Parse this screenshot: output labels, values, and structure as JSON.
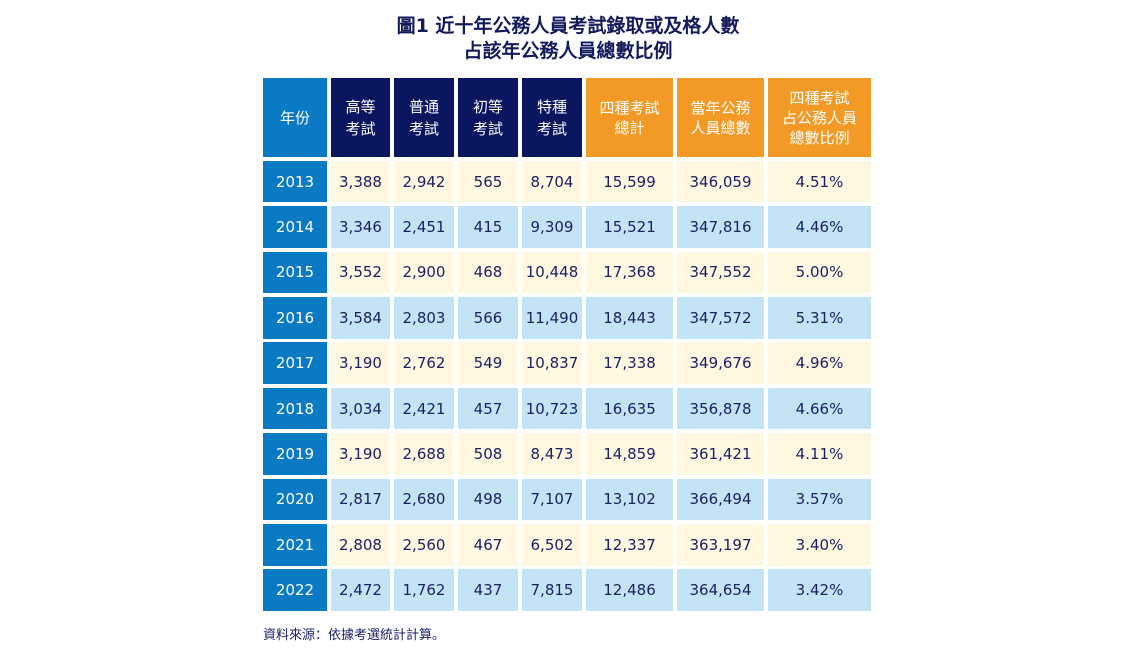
{
  "title_line1": "圖1 近十年公務人員考試錄取或及格人數",
  "title_line2": "占該年公務人員總數比例",
  "chart_data": {
    "type": "table",
    "title": "圖1 近十年公務人員考試錄取或及格人數 占該年公務人員總數比例",
    "columns": [
      "年份",
      "高等考試",
      "普通考試",
      "初等考試",
      "特種考試",
      "四種考試總計",
      "當年公務人員總數",
      "四種考試占公務人員總數比例"
    ],
    "rows": [
      [
        "2013",
        "3,388",
        "2,942",
        "565",
        "8,704",
        "15,599",
        "346,059",
        "4.51%"
      ],
      [
        "2014",
        "3,346",
        "2,451",
        "415",
        "9,309",
        "15,521",
        "347,816",
        "4.46%"
      ],
      [
        "2015",
        "3,552",
        "2,900",
        "468",
        "10,448",
        "17,368",
        "347,552",
        "5.00%"
      ],
      [
        "2016",
        "3,584",
        "2,803",
        "566",
        "11,490",
        "18,443",
        "347,572",
        "5.31%"
      ],
      [
        "2017",
        "3,190",
        "2,762",
        "549",
        "10,837",
        "17,338",
        "349,676",
        "4.96%"
      ],
      [
        "2018",
        "3,034",
        "2,421",
        "457",
        "10,723",
        "16,635",
        "356,878",
        "4.66%"
      ],
      [
        "2019",
        "3,190",
        "2,688",
        "508",
        "8,473",
        "14,859",
        "361,421",
        "4.11%"
      ],
      [
        "2020",
        "2,817",
        "2,680",
        "498",
        "7,107",
        "13,102",
        "366,494",
        "3.57%"
      ],
      [
        "2021",
        "2,808",
        "2,560",
        "467",
        "6,502",
        "12,337",
        "363,197",
        "3.40%"
      ],
      [
        "2022",
        "2,472",
        "1,762",
        "437",
        "7,815",
        "12,486",
        "364,654",
        "3.42%"
      ]
    ]
  },
  "header_lines": [
    [
      "年份"
    ],
    [
      "高等",
      "考試"
    ],
    [
      "普通",
      "考試"
    ],
    [
      "初等",
      "考試"
    ],
    [
      "特種",
      "考試"
    ],
    [
      "四種考試",
      "總計"
    ],
    [
      "當年公務",
      "人員總數"
    ],
    [
      "四種考試",
      "占公務人員",
      "總數比例"
    ]
  ],
  "footnote": "資料來源：依據考選統計計算。",
  "colors": {
    "year": "#0a7ac4",
    "header_dark": "#0b1660",
    "header_orange": "#f39a26",
    "row_cream": "#fef8e1",
    "row_blue": "#c2e4f5",
    "text": "#1a1f66"
  }
}
